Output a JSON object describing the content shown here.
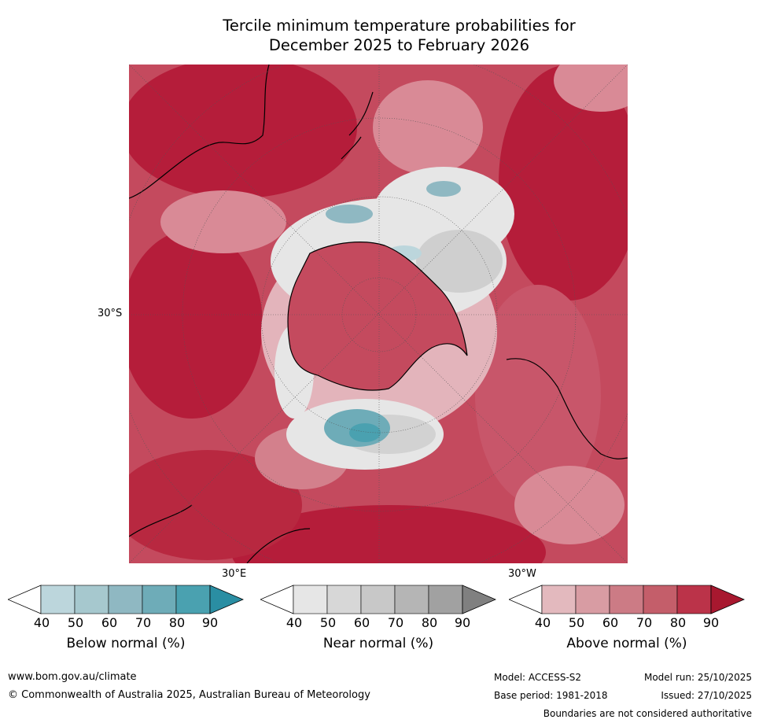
{
  "title": {
    "line1": "Tercile minimum temperature probabilities for",
    "line2": "December 2025 to February 2026"
  },
  "map": {
    "lat_label": "30°S",
    "lon_label_left": "30°E",
    "lon_label_right": "30°W",
    "projection": "south-polar-stereographic",
    "dominant_category": "Above normal"
  },
  "colorbars": [
    {
      "name": "Below normal (%)",
      "ticks": [
        "40",
        "50",
        "60",
        "70",
        "80",
        "90"
      ],
      "colors": [
        "#bcd6dc",
        "#a6c8ce",
        "#8fb8c2",
        "#6eacb8",
        "#4aa1b0",
        "#2a8ea3"
      ]
    },
    {
      "name": "Near normal (%)",
      "ticks": [
        "40",
        "50",
        "60",
        "70",
        "80",
        "90"
      ],
      "colors": [
        "#e6e6e6",
        "#d7d7d7",
        "#c8c8c8",
        "#b5b5b5",
        "#a1a1a1",
        "#808080"
      ]
    },
    {
      "name": "Above normal (%)",
      "ticks": [
        "40",
        "50",
        "60",
        "70",
        "80",
        "90"
      ],
      "colors": [
        "#e3b9be",
        "#d89ca3",
        "#cc7b85",
        "#c45e6a",
        "#bb3349",
        "#a8182f"
      ]
    }
  ],
  "footer": {
    "website": "www.bom.gov.au/climate",
    "copyright": "© Commonwealth of Australia 2025, Australian Bureau of Meteorology",
    "model": "Model: ACCESS-S2",
    "base_period": "Base period: 1981-2018",
    "model_run": "Model run: 25/10/2025",
    "issued": "Issued: 27/10/2025",
    "disclaimer": "Boundaries are not considered authoritative"
  }
}
